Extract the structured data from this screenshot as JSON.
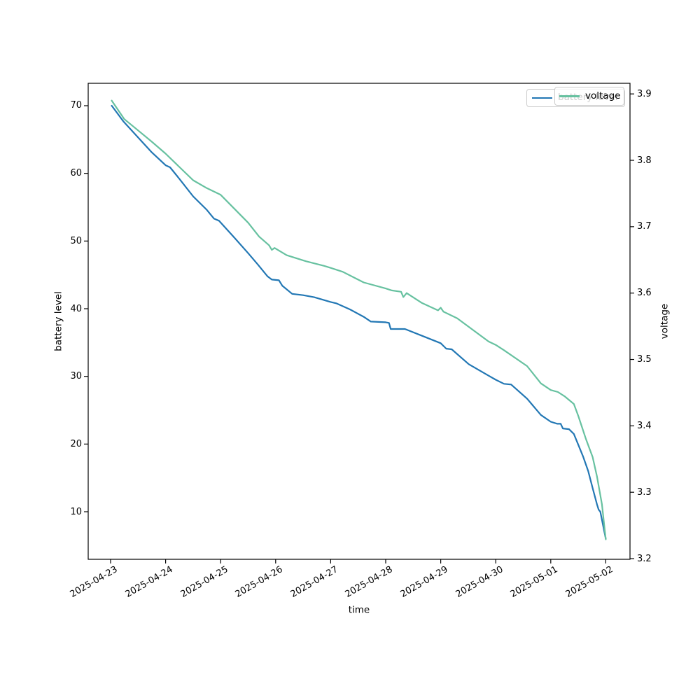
{
  "figure": {
    "background": "#ffffff"
  },
  "chart_data": {
    "type": "line",
    "title": "",
    "xlabel": "time",
    "ylabel_left": "battery level",
    "ylabel_right": "voltage",
    "x_unit": "days since 2025-04-23 00:00",
    "x_range": [
      -0.407,
      9.44
    ],
    "x_ticks": [
      {
        "t": 0,
        "label": "2025-04-23"
      },
      {
        "t": 1,
        "label": "2025-04-24"
      },
      {
        "t": 2,
        "label": "2025-04-25"
      },
      {
        "t": 3,
        "label": "2025-04-26"
      },
      {
        "t": 4,
        "label": "2025-04-27"
      },
      {
        "t": 5,
        "label": "2025-04-28"
      },
      {
        "t": 6,
        "label": "2025-04-29"
      },
      {
        "t": 7,
        "label": "2025-04-30"
      },
      {
        "t": 8,
        "label": "2025-05-01"
      },
      {
        "t": 9,
        "label": "2025-05-02"
      }
    ],
    "y_left": {
      "min": 2.97,
      "max": 73.31,
      "ticks": [
        "10",
        "20",
        "30",
        "40",
        "50",
        "60",
        "70"
      ]
    },
    "y_right": {
      "min": 3.199,
      "max": 3.916,
      "ticks": [
        "3.2",
        "3.3",
        "3.4",
        "3.5",
        "3.6",
        "3.7",
        "3.8",
        "3.9"
      ]
    },
    "grid": false,
    "legend_position": "upper right",
    "series": [
      {
        "name": "battery level",
        "axis": "left",
        "color": "#2277b4",
        "points": [
          [
            0.02,
            70
          ],
          [
            0.23,
            67.7
          ],
          [
            0.5,
            65.3
          ],
          [
            0.75,
            63.1
          ],
          [
            1.0,
            61.2
          ],
          [
            1.08,
            60.9
          ],
          [
            1.25,
            59.2
          ],
          [
            1.5,
            56.6
          ],
          [
            1.75,
            54.6
          ],
          [
            1.88,
            53.3
          ],
          [
            1.97,
            53.0
          ],
          [
            2.25,
            50.5
          ],
          [
            2.5,
            48.2
          ],
          [
            2.68,
            46.5
          ],
          [
            2.85,
            44.8
          ],
          [
            2.93,
            44.3
          ],
          [
            3.06,
            44.2
          ],
          [
            3.12,
            43.4
          ],
          [
            3.3,
            42.2
          ],
          [
            3.5,
            42.0
          ],
          [
            3.7,
            41.7
          ],
          [
            4.0,
            41.0
          ],
          [
            4.1,
            40.8
          ],
          [
            4.35,
            39.9
          ],
          [
            4.6,
            38.8
          ],
          [
            4.73,
            38.1
          ],
          [
            5.0,
            38.0
          ],
          [
            5.06,
            37.9
          ],
          [
            5.09,
            37.0
          ],
          [
            5.35,
            37.0
          ],
          [
            5.66,
            36.0
          ],
          [
            6.0,
            34.9
          ],
          [
            6.1,
            34.1
          ],
          [
            6.2,
            34.0
          ],
          [
            6.51,
            31.8
          ],
          [
            6.87,
            30.1
          ],
          [
            7.0,
            29.5
          ],
          [
            7.15,
            28.9
          ],
          [
            7.28,
            28.8
          ],
          [
            7.57,
            26.7
          ],
          [
            7.82,
            24.3
          ],
          [
            8.0,
            23.3
          ],
          [
            8.12,
            23.0
          ],
          [
            8.18,
            23.0
          ],
          [
            8.22,
            22.3
          ],
          [
            8.33,
            22.2
          ],
          [
            8.42,
            21.5
          ],
          [
            8.59,
            18.1
          ],
          [
            8.68,
            16.0
          ],
          [
            8.76,
            13.5
          ],
          [
            8.84,
            11.1
          ],
          [
            8.87,
            10.3
          ],
          [
            8.9,
            10.0
          ],
          [
            8.95,
            8.0
          ],
          [
            9.0,
            6.0
          ]
        ]
      },
      {
        "name": "voltage",
        "axis": "right",
        "color": "#67c1a0",
        "points": [
          [
            0.02,
            3.89
          ],
          [
            0.25,
            3.862
          ],
          [
            0.5,
            3.845
          ],
          [
            0.75,
            3.828
          ],
          [
            1.0,
            3.81
          ],
          [
            1.25,
            3.79
          ],
          [
            1.5,
            3.77
          ],
          [
            1.75,
            3.758
          ],
          [
            2.0,
            3.748
          ],
          [
            2.25,
            3.727
          ],
          [
            2.5,
            3.706
          ],
          [
            2.7,
            3.685
          ],
          [
            2.88,
            3.672
          ],
          [
            2.93,
            3.665
          ],
          [
            2.98,
            3.668
          ],
          [
            3.2,
            3.657
          ],
          [
            3.55,
            3.648
          ],
          [
            3.88,
            3.641
          ],
          [
            4.0,
            3.638
          ],
          [
            4.22,
            3.632
          ],
          [
            4.6,
            3.616
          ],
          [
            5.0,
            3.607
          ],
          [
            5.11,
            3.604
          ],
          [
            5.28,
            3.602
          ],
          [
            5.32,
            3.594
          ],
          [
            5.38,
            3.6
          ],
          [
            5.66,
            3.585
          ],
          [
            5.95,
            3.574
          ],
          [
            6.0,
            3.578
          ],
          [
            6.05,
            3.572
          ],
          [
            6.3,
            3.562
          ],
          [
            6.87,
            3.527
          ],
          [
            7.0,
            3.522
          ],
          [
            7.15,
            3.514
          ],
          [
            7.57,
            3.49
          ],
          [
            7.82,
            3.464
          ],
          [
            8.0,
            3.454
          ],
          [
            8.13,
            3.451
          ],
          [
            8.26,
            3.444
          ],
          [
            8.42,
            3.433
          ],
          [
            8.5,
            3.415
          ],
          [
            8.64,
            3.38
          ],
          [
            8.76,
            3.353
          ],
          [
            8.84,
            3.324
          ],
          [
            8.93,
            3.282
          ],
          [
            9.0,
            3.229
          ]
        ]
      }
    ],
    "legend": [
      {
        "label": "battery level",
        "color": "#2277b4"
      },
      {
        "label": "voltage",
        "color": "#67c1a0"
      }
    ]
  }
}
